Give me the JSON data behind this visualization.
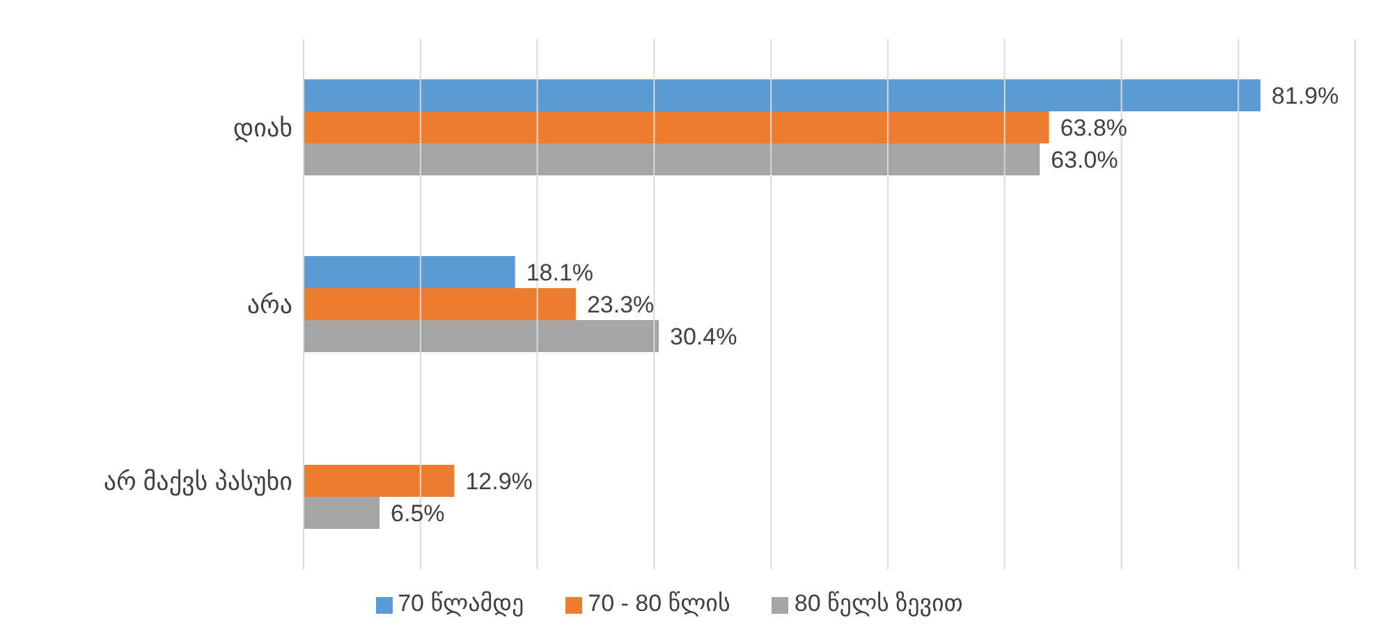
{
  "chart_data": {
    "type": "bar",
    "orientation": "horizontal",
    "categories": [
      "დიახ",
      "არა",
      "არ მაქვს პასუხი"
    ],
    "series": [
      {
        "name": "70 წლამდე",
        "color": "#5b9bd5",
        "values": [
          81.9,
          18.1,
          null
        ],
        "value_labels": [
          "81.9%",
          "18.1%",
          null
        ]
      },
      {
        "name": "70 - 80 წლის",
        "color": "#ed7d31",
        "values": [
          63.8,
          23.3,
          12.9
        ],
        "value_labels": [
          "63.8%",
          "23.3%",
          "12.9%"
        ]
      },
      {
        "name": "80 წელს ზევით",
        "color": "#a5a5a5",
        "values": [
          63.0,
          30.4,
          6.5
        ],
        "value_labels": [
          "63.0%",
          "30.4%",
          "6.5%"
        ]
      }
    ],
    "xlim": [
      0,
      90
    ],
    "xticks": [
      {
        "value": 0,
        "label": null
      },
      {
        "value": 10,
        "label": null
      },
      {
        "value": 20,
        "label": null
      },
      {
        "value": 30,
        "label": null
      },
      {
        "value": 40,
        "label": null
      },
      {
        "value": 50,
        "label": null
      },
      {
        "value": 60,
        "label": null
      },
      {
        "value": 70,
        "label": null
      },
      {
        "value": 80,
        "label": null
      },
      {
        "value": 90,
        "label": null
      }
    ],
    "tick_labels": "y",
    "grid": "x",
    "legend": "bottom"
  }
}
